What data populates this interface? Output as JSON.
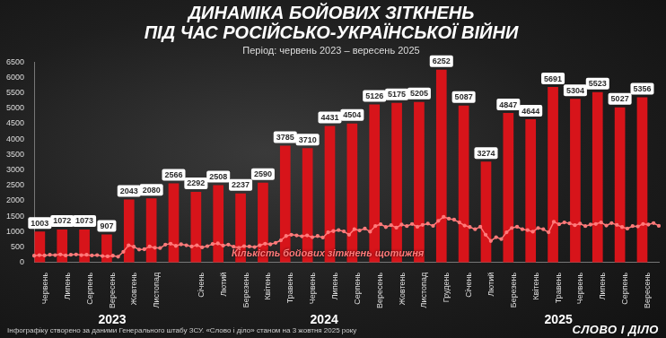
{
  "chart_data": {
    "type": "bar",
    "title": [
      "ДИНАМІКА БОЙОВИХ ЗІТКНЕНЬ",
      "ПІД ЧАС РОСІЙСЬКО-УКРАЇНСЬКОЇ ВІЙНИ"
    ],
    "subtitle": "Період: червень 2023 – вересень 2025",
    "categories": [
      "Червень",
      "Липень",
      "Серпень",
      "Вересень",
      "Жовтень",
      "Листопад",
      null,
      "Січень",
      "Лютий",
      "Березень",
      "Квітень",
      "Травень",
      "Червень",
      "Липень",
      "Серпень",
      "Вересень",
      "Жовтень",
      "Листопад",
      "Грудень",
      "Січень",
      "Лютий",
      "Березень",
      "Квітень",
      "Травень",
      "Червень",
      "Липень",
      "Серпень",
      "Вересень"
    ],
    "values": [
      1003,
      1072,
      1073,
      907,
      2043,
      2080,
      2566,
      2292,
      2508,
      2237,
      2590,
      3785,
      3710,
      4431,
      4504,
      5126,
      5175,
      5205,
      6252,
      5087,
      3274,
      4847,
      4644,
      5691,
      5304,
      5523,
      5027,
      5356
    ],
    "color": "#d7141a",
    "data_labels": true,
    "ylim": [
      0,
      6500
    ],
    "yticks": [
      0,
      500,
      1000,
      1500,
      2000,
      2500,
      3000,
      3500,
      4000,
      4500,
      5000,
      5500,
      6000,
      6500
    ],
    "grid": false,
    "year_groups": [
      {
        "label": "2023",
        "count": 7
      },
      {
        "label": "2024",
        "count": 12
      },
      {
        "label": "2025",
        "count": 9
      }
    ],
    "weekly": {
      "name": "Кількість бойових зіткнень щотижня",
      "type": "line",
      "color": "#ff7a7a",
      "marker": "circle",
      "values": [
        220,
        240,
        230,
        250,
        240,
        260,
        230,
        250,
        260,
        240,
        250,
        230,
        240,
        210,
        200,
        220,
        190,
        350,
        560,
        510,
        420,
        430,
        520,
        480,
        470,
        580,
        610,
        540,
        590,
        560,
        520,
        560,
        490,
        530,
        600,
        620,
        550,
        580,
        510,
        480,
        530,
        520,
        500,
        560,
        610,
        590,
        640,
        720,
        860,
        900,
        880,
        850,
        880,
        820,
        860,
        810,
        980,
        1020,
        1050,
        1010,
        900,
        1080,
        1040,
        1100,
        1000,
        1180,
        1240,
        1150,
        1210,
        1130,
        1230,
        1180,
        1250,
        1160,
        1220,
        1260,
        1190,
        1350,
        1480,
        1420,
        1390,
        1300,
        1200,
        1150,
        1080,
        1160,
        900,
        700,
        820,
        760,
        980,
        1120,
        1160,
        1080,
        1050,
        1000,
        1120,
        1080,
        980,
        1320,
        1240,
        1300,
        1270,
        1210,
        1260,
        1180,
        1230,
        1250,
        1300,
        1200,
        1280,
        1220,
        1150,
        1100,
        1180,
        1170,
        1250,
        1230,
        1280,
        1190
      ]
    },
    "source": "Інфографіку створено за даними Генерального штабу ЗСУ. «Слово і діло» станом на 3 жовтня 2025 року",
    "logo": "СЛОВО І ДІЛО"
  }
}
